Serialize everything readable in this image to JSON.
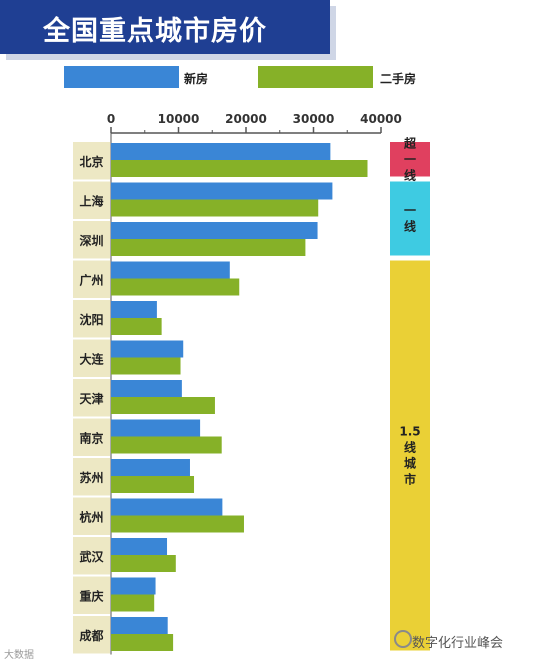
{
  "title": "全国重点城市房价",
  "legend": {
    "new_label": "新房",
    "used_label": "二手房"
  },
  "colors": {
    "new": "#3a86d6",
    "used": "#86b128",
    "label_bg": "#ede8c4",
    "super_tier": "#e0405f",
    "tier1": "#3ecbe2",
    "tier15": "#ead036",
    "axis": "#555555"
  },
  "watermark_left": "大数据",
  "watermark_right": "数字化行业峰会",
  "chart_data": {
    "type": "bar",
    "orientation": "horizontal",
    "title": "全国重点城市房价",
    "xlim": [
      0,
      40000
    ],
    "ticks": [
      "0",
      "10000",
      "20000",
      "30000",
      "40000"
    ],
    "tick_values": [
      0,
      10000,
      20000,
      30000,
      40000
    ],
    "categories": [
      "北京",
      "上海",
      "深圳",
      "广州",
      "沈阳",
      "大连",
      "天津",
      "南京",
      "苏州",
      "杭州",
      "武汉",
      "重庆",
      "成都"
    ],
    "series": [
      {
        "name": "新房",
        "values": [
          32500,
          32800,
          30600,
          17600,
          6800,
          10700,
          10500,
          13200,
          11700,
          16500,
          8300,
          6600,
          8400
        ]
      },
      {
        "name": "二手房",
        "values": [
          38000,
          30700,
          28800,
          19000,
          7500,
          10300,
          15400,
          16400,
          12300,
          19700,
          9600,
          6400,
          9200
        ]
      }
    ],
    "legend_position": "top",
    "tiers": [
      {
        "label": "超一线",
        "cities": [
          "北京"
        ]
      },
      {
        "label": "一线",
        "cities": [
          "上海",
          "深圳"
        ]
      },
      {
        "label": "1.5线城市",
        "cities": [
          "广州",
          "沈阳",
          "大连",
          "天津",
          "南京",
          "苏州",
          "杭州",
          "武汉",
          "重庆",
          "成都"
        ]
      }
    ]
  }
}
